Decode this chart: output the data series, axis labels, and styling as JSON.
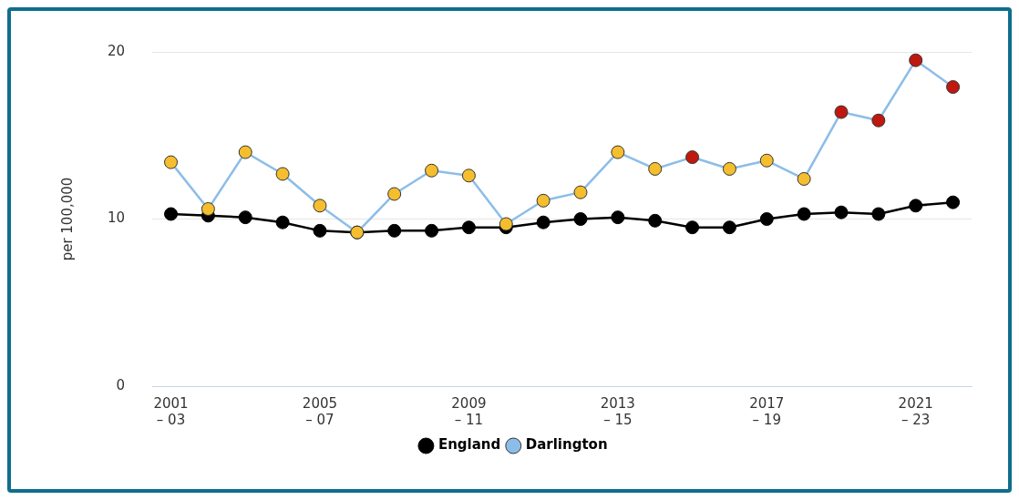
{
  "chart_data": {
    "type": "line",
    "ylabel": "per 100,000",
    "categories": [
      "2001\n– 03",
      null,
      null,
      null,
      "2005\n– 07",
      null,
      null,
      null,
      "2009\n– 11",
      null,
      null,
      null,
      "2013\n– 15",
      null,
      null,
      null,
      "2017\n– 19",
      null,
      null,
      null,
      "2021\n– 23",
      null
    ],
    "series": [
      {
        "name": "England",
        "color": "#000000",
        "values": [
          10.3,
          10.2,
          10.1,
          9.8,
          9.3,
          9.2,
          9.3,
          9.3,
          9.5,
          9.5,
          9.8,
          10.0,
          10.1,
          9.9,
          9.5,
          9.5,
          10.0,
          10.3,
          10.4,
          10.3,
          10.8,
          11.0
        ]
      },
      {
        "name": "Darlington",
        "color": "#8cbde8",
        "colors": [
          "#f5be2e",
          "#f5be2e",
          "#f5be2e",
          "#f5be2e",
          "#f5be2e",
          "#f5be2e",
          "#f5be2e",
          "#f5be2e",
          "#f5be2e",
          "#f5be2e",
          "#f5be2e",
          "#f5be2e",
          "#f5be2e",
          "#f5be2e",
          "#c0180e",
          "#f5be2e",
          "#f5be2e",
          "#f5be2e",
          "#c0180e",
          "#c0180e",
          "#c0180e",
          "#c0180e"
        ],
        "values": [
          13.4,
          10.6,
          14.0,
          12.7,
          10.8,
          9.2,
          11.5,
          12.9,
          12.6,
          9.7,
          11.1,
          11.6,
          14.0,
          13.0,
          13.7,
          13.0,
          13.5,
          12.4,
          16.4,
          15.9,
          19.5,
          17.9
        ]
      }
    ],
    "ylim": [
      0,
      20
    ],
    "yticks": [
      0,
      10,
      20
    ],
    "grid": "y",
    "legend": "bottom",
    "marker": "circle",
    "line_style": "solid"
  }
}
